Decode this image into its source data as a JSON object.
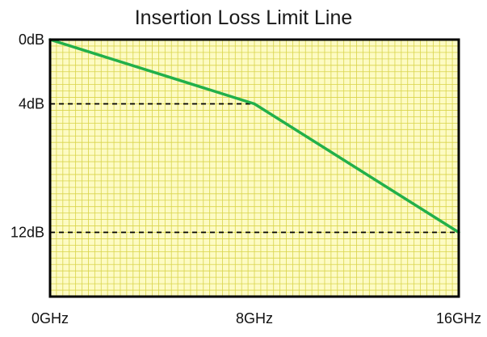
{
  "chart_data": {
    "type": "line",
    "title": "Insertion Loss Limit Line",
    "xlabel": "",
    "ylabel": "",
    "xlim": [
      0,
      16
    ],
    "ylim": [
      0,
      16
    ],
    "y_inverted": true,
    "x_ticks": [
      {
        "value": 0,
        "label": "0GHz"
      },
      {
        "value": 8,
        "label": "8GHz"
      },
      {
        "value": 16,
        "label": "16GHz"
      }
    ],
    "y_ticks": [
      {
        "value": 0,
        "label": "0dB"
      },
      {
        "value": 4,
        "label": "4dB"
      },
      {
        "value": 12,
        "label": "12dB"
      }
    ],
    "grid": true,
    "series": [
      {
        "x": [
          0,
          8,
          16
        ],
        "y": [
          0,
          4,
          12
        ]
      }
    ],
    "reference_lines": [
      {
        "x": [
          0,
          8
        ],
        "y": [
          4,
          4
        ]
      },
      {
        "x": [
          0,
          16
        ],
        "y": [
          12,
          12
        ]
      }
    ],
    "colors": {
      "plot_background": "#fdfbc4",
      "grid": "#d9d44a",
      "frame": "#000000",
      "line": "#22b04a",
      "reference": "#000000"
    }
  }
}
